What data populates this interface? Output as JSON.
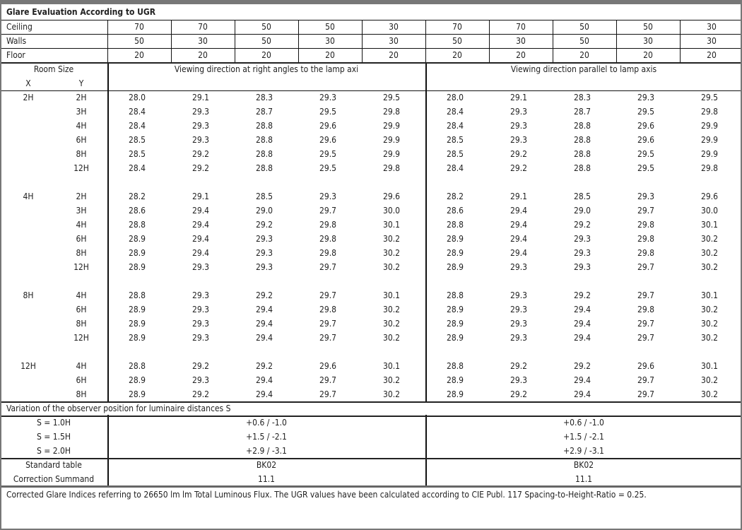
{
  "title": "Glare Evaluation According to UGR",
  "reflectances": [
    {
      "label": "Ceiling",
      "values": [
        "70",
        "70",
        "50",
        "50",
        "30",
        "70",
        "70",
        "50",
        "50",
        "30"
      ]
    },
    {
      "label": "Walls",
      "values": [
        "50",
        "30",
        "50",
        "30",
        "30",
        "50",
        "30",
        "50",
        "30",
        "30"
      ]
    },
    {
      "label": "Floor",
      "values": [
        "20",
        "20",
        "20",
        "20",
        "20",
        "20",
        "20",
        "20",
        "20",
        "20"
      ]
    }
  ],
  "header": {
    "room_size": "Room Size",
    "x": "X",
    "y": "Y",
    "left_title": "Viewing direction at right angles to the lamp axi",
    "right_title": "Viewing direction parallel to lamp axis"
  },
  "groups": [
    {
      "x": "2H",
      "rows": [
        {
          "y": "2H",
          "values": [
            "28.0",
            "29.1",
            "28.3",
            "29.3",
            "29.5",
            "28.0",
            "29.1",
            "28.3",
            "29.3",
            "29.5"
          ]
        },
        {
          "y": "3H",
          "values": [
            "28.4",
            "29.3",
            "28.7",
            "29.5",
            "29.8",
            "28.4",
            "29.3",
            "28.7",
            "29.5",
            "29.8"
          ]
        },
        {
          "y": "4H",
          "values": [
            "28.4",
            "29.3",
            "28.8",
            "29.6",
            "29.9",
            "28.4",
            "29.3",
            "28.8",
            "29.6",
            "29.9"
          ]
        },
        {
          "y": "6H",
          "values": [
            "28.5",
            "29.3",
            "28.8",
            "29.6",
            "29.9",
            "28.5",
            "29.3",
            "28.8",
            "29.6",
            "29.9"
          ]
        },
        {
          "y": "8H",
          "values": [
            "28.5",
            "29.2",
            "28.8",
            "29.5",
            "29.9",
            "28.5",
            "29.2",
            "28.8",
            "29.5",
            "29.9"
          ]
        },
        {
          "y": "12H",
          "values": [
            "28.4",
            "29.2",
            "28.8",
            "29.5",
            "29.8",
            "28.4",
            "29.2",
            "28.8",
            "29.5",
            "29.8"
          ]
        }
      ]
    },
    {
      "x": "4H",
      "rows": [
        {
          "y": "2H",
          "values": [
            "28.2",
            "29.1",
            "28.5",
            "29.3",
            "29.6",
            "28.2",
            "29.1",
            "28.5",
            "29.3",
            "29.6"
          ]
        },
        {
          "y": "3H",
          "values": [
            "28.6",
            "29.4",
            "29.0",
            "29.7",
            "30.0",
            "28.6",
            "29.4",
            "29.0",
            "29.7",
            "30.0"
          ]
        },
        {
          "y": "4H",
          "values": [
            "28.8",
            "29.4",
            "29.2",
            "29.8",
            "30.1",
            "28.8",
            "29.4",
            "29.2",
            "29.8",
            "30.1"
          ]
        },
        {
          "y": "6H",
          "values": [
            "28.9",
            "29.4",
            "29.3",
            "29.8",
            "30.2",
            "28.9",
            "29.4",
            "29.3",
            "29.8",
            "30.2"
          ]
        },
        {
          "y": "8H",
          "values": [
            "28.9",
            "29.4",
            "29.3",
            "29.8",
            "30.2",
            "28.9",
            "29.4",
            "29.3",
            "29.8",
            "30.2"
          ]
        },
        {
          "y": "12H",
          "values": [
            "28.9",
            "29.3",
            "29.3",
            "29.7",
            "30.2",
            "28.9",
            "29.3",
            "29.3",
            "29.7",
            "30.2"
          ]
        }
      ]
    },
    {
      "x": "8H",
      "rows": [
        {
          "y": "4H",
          "values": [
            "28.8",
            "29.3",
            "29.2",
            "29.7",
            "30.1",
            "28.8",
            "29.3",
            "29.2",
            "29.7",
            "30.1"
          ]
        },
        {
          "y": "6H",
          "values": [
            "28.9",
            "29.3",
            "29.4",
            "29.8",
            "30.2",
            "28.9",
            "29.3",
            "29.4",
            "29.8",
            "30.2"
          ]
        },
        {
          "y": "8H",
          "values": [
            "28.9",
            "29.3",
            "29.4",
            "29.7",
            "30.2",
            "28.9",
            "29.3",
            "29.4",
            "29.7",
            "30.2"
          ]
        },
        {
          "y": "12H",
          "values": [
            "28.9",
            "29.3",
            "29.4",
            "29.7",
            "30.2",
            "28.9",
            "29.3",
            "29.4",
            "29.7",
            "30.2"
          ]
        }
      ]
    },
    {
      "x": "12H",
      "rows": [
        {
          "y": "4H",
          "values": [
            "28.8",
            "29.2",
            "29.2",
            "29.6",
            "30.1",
            "28.8",
            "29.2",
            "29.2",
            "29.6",
            "30.1"
          ]
        },
        {
          "y": "6H",
          "values": [
            "28.9",
            "29.3",
            "29.4",
            "29.7",
            "30.2",
            "28.9",
            "29.3",
            "29.4",
            "29.7",
            "30.2"
          ]
        },
        {
          "y": "8H",
          "values": [
            "28.9",
            "29.2",
            "29.4",
            "29.7",
            "30.2",
            "28.9",
            "29.2",
            "29.4",
            "29.7",
            "30.2"
          ]
        }
      ]
    }
  ],
  "variation": {
    "title": "Variation of the observer position for luminaire distances S",
    "rows": [
      {
        "label": "S = 1.0H",
        "left": "+0.6 / -1.0",
        "right": "+0.6 / -1.0"
      },
      {
        "label": "S = 1.5H",
        "left": "+1.5 / -2.1",
        "right": "+1.5 / -2.1"
      },
      {
        "label": "S = 2.0H",
        "left": "+2.9 / -3.1",
        "right": "+2.9 / -3.1"
      }
    ]
  },
  "standard_table": {
    "label": "Standard table",
    "left": "BK02",
    "right": "BK02"
  },
  "correction_summand": {
    "label": "Correction Summand",
    "left": "11.1",
    "right": "11.1"
  },
  "footer": "Corrected Glare Indices referring to 26650 lm lm Total Luminous Flux. The UGR values have been calculated according to CIE Publ. 117    Spacing-to-Height-Ratio = 0.25."
}
